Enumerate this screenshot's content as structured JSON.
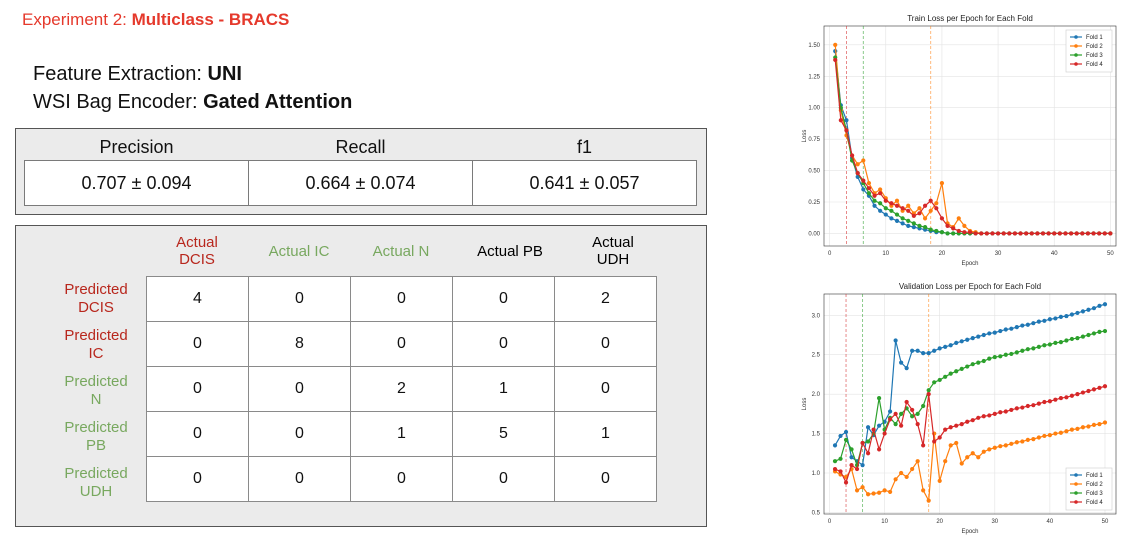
{
  "header": {
    "prefix": "Experiment 2: ",
    "title": "Multiclass - BRACS"
  },
  "config": {
    "feature_label": "Feature Extraction: ",
    "feature_value": "UNI",
    "encoder_label": "WSI Bag Encoder: ",
    "encoder_value": "Gated Attention"
  },
  "metrics": {
    "headers": [
      "Precision",
      "Recall",
      "f1"
    ],
    "values": [
      "0.707 ± 0.094",
      "0.664 ± 0.074",
      "0.641 ± 0.057"
    ]
  },
  "confusion_matrix": {
    "col_labels": [
      {
        "line1": "Actual",
        "line2": "DCIS",
        "color": "#b8271d"
      },
      {
        "line1": "Actual IC",
        "line2": "",
        "color": "#b8271d"
      },
      {
        "line1": "Actual N",
        "line2": "",
        "color": "#78a85f"
      },
      {
        "line1": "Actual PB",
        "line2": "",
        "color": "#78a85f"
      },
      {
        "line1": "Actual",
        "line2": "UDH",
        "color": "#78a85f"
      }
    ],
    "row_labels": [
      {
        "line1": "Predicted",
        "line2": "DCIS",
        "color": "#b8271d"
      },
      {
        "line1": "Predicted",
        "line2": "IC",
        "color": "#b8271d"
      },
      {
        "line1": "Predicted",
        "line2": "N",
        "color": "#78a85f"
      },
      {
        "line1": "Predicted",
        "line2": "PB",
        "color": "#78a85f"
      },
      {
        "line1": "Predicted",
        "line2": "UDH",
        "color": "#78a85f"
      }
    ],
    "values": [
      [
        4,
        0,
        0,
        0,
        2
      ],
      [
        0,
        8,
        0,
        0,
        0
      ],
      [
        0,
        0,
        2,
        1,
        0
      ],
      [
        0,
        0,
        1,
        5,
        1
      ],
      [
        0,
        0,
        0,
        0,
        0
      ]
    ]
  },
  "chart_data": [
    {
      "type": "line",
      "title": "Train Loss per Epoch for Each Fold",
      "xlabel": "Epoch",
      "ylabel": "Loss",
      "xlim": [
        -1,
        51
      ],
      "ylim": [
        -0.1,
        1.65
      ],
      "xticks": [
        0,
        10,
        20,
        30,
        40,
        50
      ],
      "yticks": [
        0.0,
        0.25,
        0.5,
        0.75,
        1.0,
        1.25,
        1.5
      ],
      "ytick_labels": [
        "0.00",
        "0.25",
        "0.50",
        "0.75",
        "1.00",
        "1.25",
        "1.50"
      ],
      "legend": "top-right",
      "grid": true,
      "vlines": [
        {
          "x": 3,
          "color": "#d62728"
        },
        {
          "x": 6,
          "color": "#2ca02c"
        },
        {
          "x": 18,
          "color": "#ff7f0e"
        }
      ],
      "series": [
        {
          "name": "Fold 1",
          "color": "#1f77b4",
          "x": [
            1,
            2,
            3,
            4,
            5,
            6,
            7,
            8,
            9,
            10,
            11,
            12,
            13,
            14,
            15,
            16,
            17,
            18,
            19,
            20,
            21,
            22,
            23,
            24,
            25,
            26,
            27,
            28,
            29,
            30,
            31,
            32,
            33,
            34,
            35,
            36,
            37,
            38,
            39,
            40,
            41,
            42,
            43,
            44,
            45,
            46,
            47,
            48,
            49,
            50
          ],
          "y": [
            1.45,
            1.02,
            0.9,
            0.6,
            0.45,
            0.35,
            0.3,
            0.22,
            0.18,
            0.15,
            0.12,
            0.1,
            0.08,
            0.06,
            0.05,
            0.04,
            0.03,
            0.02,
            0.01,
            0.01,
            0,
            0,
            0,
            0,
            0,
            0,
            0,
            0,
            0,
            0,
            0,
            0,
            0,
            0,
            0,
            0,
            0,
            0,
            0,
            0,
            0,
            0,
            0,
            0,
            0,
            0,
            0,
            0,
            0,
            0
          ]
        },
        {
          "name": "Fold 2",
          "color": "#ff7f0e",
          "x": [
            1,
            2,
            3,
            4,
            5,
            6,
            7,
            8,
            9,
            10,
            11,
            12,
            13,
            14,
            15,
            16,
            17,
            18,
            19,
            20,
            21,
            22,
            23,
            24,
            25,
            26,
            27,
            28,
            29,
            30,
            31,
            32,
            33,
            34,
            35,
            36,
            37,
            38,
            39,
            40,
            41,
            42,
            43,
            44,
            45,
            46,
            47,
            48,
            49,
            50
          ],
          "y": [
            1.5,
            0.98,
            0.78,
            0.62,
            0.55,
            0.58,
            0.4,
            0.32,
            0.35,
            0.28,
            0.22,
            0.26,
            0.18,
            0.22,
            0.16,
            0.2,
            0.12,
            0.18,
            0.24,
            0.4,
            0.08,
            0.05,
            0.12,
            0.06,
            0.02,
            0.01,
            0,
            0,
            0,
            0,
            0,
            0,
            0,
            0,
            0,
            0,
            0,
            0,
            0,
            0,
            0,
            0,
            0,
            0,
            0,
            0,
            0,
            0,
            0,
            0
          ]
        },
        {
          "name": "Fold 3",
          "color": "#2ca02c",
          "x": [
            1,
            2,
            3,
            4,
            5,
            6,
            7,
            8,
            9,
            10,
            11,
            12,
            13,
            14,
            15,
            16,
            17,
            18,
            19,
            20,
            21,
            22,
            23,
            24,
            25,
            26,
            27,
            28,
            29,
            30,
            31,
            32,
            33,
            34,
            35,
            36,
            37,
            38,
            39,
            40,
            41,
            42,
            43,
            44,
            45,
            46,
            47,
            48,
            49,
            50
          ],
          "y": [
            1.4,
            1.0,
            0.82,
            0.58,
            0.48,
            0.4,
            0.32,
            0.26,
            0.24,
            0.2,
            0.18,
            0.15,
            0.12,
            0.1,
            0.08,
            0.06,
            0.05,
            0.03,
            0.02,
            0.01,
            0,
            0,
            0,
            0,
            0,
            0,
            0,
            0,
            0,
            0,
            0,
            0,
            0,
            0,
            0,
            0,
            0,
            0,
            0,
            0,
            0,
            0,
            0,
            0,
            0,
            0,
            0,
            0,
            0,
            0
          ]
        },
        {
          "name": "Fold 4",
          "color": "#d62728",
          "x": [
            1,
            2,
            3,
            4,
            5,
            6,
            7,
            8,
            9,
            10,
            11,
            12,
            13,
            14,
            15,
            16,
            17,
            18,
            19,
            20,
            21,
            22,
            23,
            24,
            25,
            26,
            27,
            28,
            29,
            30,
            31,
            32,
            33,
            34,
            35,
            36,
            37,
            38,
            39,
            40,
            41,
            42,
            43,
            44,
            45,
            46,
            47,
            48,
            49,
            50
          ],
          "y": [
            1.38,
            0.9,
            0.82,
            0.62,
            0.48,
            0.42,
            0.36,
            0.3,
            0.32,
            0.26,
            0.24,
            0.22,
            0.2,
            0.18,
            0.14,
            0.16,
            0.22,
            0.26,
            0.2,
            0.12,
            0.06,
            0.04,
            0.02,
            0.01,
            0.01,
            0,
            0,
            0,
            0,
            0,
            0,
            0,
            0,
            0,
            0,
            0,
            0,
            0,
            0,
            0,
            0,
            0,
            0,
            0,
            0,
            0,
            0,
            0,
            0,
            0
          ]
        }
      ]
    },
    {
      "type": "line",
      "title": "Validation Loss per Epoch for Each Fold",
      "xlabel": "Epoch",
      "ylabel": "Loss",
      "xlim": [
        -1,
        52
      ],
      "ylim": [
        0.48,
        3.27
      ],
      "xticks": [
        0,
        10,
        20,
        30,
        40,
        50
      ],
      "yticks": [
        0.5,
        1.0,
        1.5,
        2.0,
        2.5,
        3.0
      ],
      "ytick_labels": [
        "0.5",
        "1.0",
        "1.5",
        "2.0",
        "2.5",
        "3.0"
      ],
      "legend": "bottom-right",
      "grid": true,
      "vlines": [
        {
          "x": 3,
          "color": "#d62728"
        },
        {
          "x": 6,
          "color": "#2ca02c"
        },
        {
          "x": 18,
          "color": "#ff7f0e"
        }
      ],
      "series": [
        {
          "name": "Fold 1",
          "color": "#1f77b4",
          "x": [
            1,
            2,
            3,
            4,
            5,
            6,
            7,
            8,
            9,
            10,
            11,
            12,
            13,
            14,
            15,
            16,
            17,
            18,
            19,
            20,
            21,
            22,
            23,
            24,
            25,
            26,
            27,
            28,
            29,
            30,
            31,
            32,
            33,
            34,
            35,
            36,
            37,
            38,
            39,
            40,
            41,
            42,
            43,
            44,
            45,
            46,
            47,
            48,
            49,
            50
          ],
          "y": [
            1.35,
            1.47,
            1.52,
            1.2,
            1.15,
            1.1,
            1.58,
            1.48,
            1.6,
            1.65,
            1.78,
            2.68,
            2.4,
            2.33,
            2.55,
            2.55,
            2.52,
            2.52,
            2.55,
            2.58,
            2.6,
            2.62,
            2.65,
            2.67,
            2.69,
            2.71,
            2.73,
            2.75,
            2.77,
            2.78,
            2.8,
            2.82,
            2.83,
            2.85,
            2.87,
            2.88,
            2.9,
            2.92,
            2.93,
            2.95,
            2.96,
            2.98,
            2.99,
            3.01,
            3.03,
            3.05,
            3.07,
            3.09,
            3.12,
            3.14
          ]
        },
        {
          "name": "Fold 2",
          "color": "#ff7f0e",
          "x": [
            1,
            2,
            3,
            4,
            5,
            6,
            7,
            8,
            9,
            10,
            11,
            12,
            13,
            14,
            15,
            16,
            17,
            18,
            19,
            20,
            21,
            22,
            23,
            24,
            25,
            26,
            27,
            28,
            29,
            30,
            31,
            32,
            33,
            34,
            35,
            36,
            37,
            38,
            39,
            40,
            41,
            42,
            43,
            44,
            45,
            46,
            47,
            48,
            49,
            50
          ],
          "y": [
            1.02,
            0.98,
            0.95,
            1.05,
            0.78,
            0.82,
            0.73,
            0.74,
            0.75,
            0.78,
            0.76,
            0.92,
            1.0,
            0.95,
            1.05,
            1.15,
            0.78,
            0.65,
            1.5,
            0.9,
            1.15,
            1.35,
            1.38,
            1.12,
            1.2,
            1.25,
            1.2,
            1.27,
            1.3,
            1.32,
            1.34,
            1.35,
            1.37,
            1.39,
            1.4,
            1.42,
            1.43,
            1.45,
            1.47,
            1.48,
            1.5,
            1.51,
            1.53,
            1.55,
            1.56,
            1.58,
            1.59,
            1.61,
            1.62,
            1.64
          ]
        },
        {
          "name": "Fold 3",
          "color": "#2ca02c",
          "x": [
            1,
            2,
            3,
            4,
            5,
            6,
            7,
            8,
            9,
            10,
            11,
            12,
            13,
            14,
            15,
            16,
            17,
            18,
            19,
            20,
            21,
            22,
            23,
            24,
            25,
            26,
            27,
            28,
            29,
            30,
            31,
            32,
            33,
            34,
            35,
            36,
            37,
            38,
            39,
            40,
            41,
            42,
            43,
            44,
            45,
            46,
            47,
            48,
            49,
            50
          ],
          "y": [
            1.15,
            1.18,
            1.42,
            1.3,
            1.1,
            1.38,
            1.4,
            1.5,
            1.95,
            1.55,
            1.7,
            1.62,
            1.75,
            1.82,
            1.72,
            1.75,
            1.85,
            2.05,
            2.15,
            2.18,
            2.22,
            2.26,
            2.29,
            2.32,
            2.35,
            2.38,
            2.4,
            2.42,
            2.45,
            2.47,
            2.48,
            2.5,
            2.51,
            2.53,
            2.55,
            2.57,
            2.58,
            2.6,
            2.62,
            2.63,
            2.65,
            2.66,
            2.68,
            2.7,
            2.71,
            2.73,
            2.75,
            2.77,
            2.79,
            2.8
          ]
        },
        {
          "name": "Fold 4",
          "color": "#d62728",
          "x": [
            1,
            2,
            3,
            4,
            5,
            6,
            7,
            8,
            9,
            10,
            11,
            12,
            13,
            14,
            15,
            16,
            17,
            18,
            19,
            20,
            21,
            22,
            23,
            24,
            25,
            26,
            27,
            28,
            29,
            30,
            31,
            32,
            33,
            34,
            35,
            36,
            37,
            38,
            39,
            40,
            41,
            42,
            43,
            44,
            45,
            46,
            47,
            48,
            49,
            50
          ],
          "y": [
            1.05,
            1.02,
            0.88,
            1.1,
            1.05,
            1.38,
            1.25,
            1.55,
            1.3,
            1.5,
            1.68,
            1.75,
            1.6,
            1.9,
            1.8,
            1.62,
            1.35,
            2.0,
            1.4,
            1.45,
            1.55,
            1.58,
            1.6,
            1.62,
            1.65,
            1.67,
            1.7,
            1.72,
            1.73,
            1.75,
            1.77,
            1.78,
            1.8,
            1.82,
            1.83,
            1.85,
            1.86,
            1.88,
            1.9,
            1.91,
            1.93,
            1.95,
            1.96,
            1.98,
            2.0,
            2.02,
            2.04,
            2.06,
            2.08,
            2.1
          ]
        }
      ]
    }
  ]
}
